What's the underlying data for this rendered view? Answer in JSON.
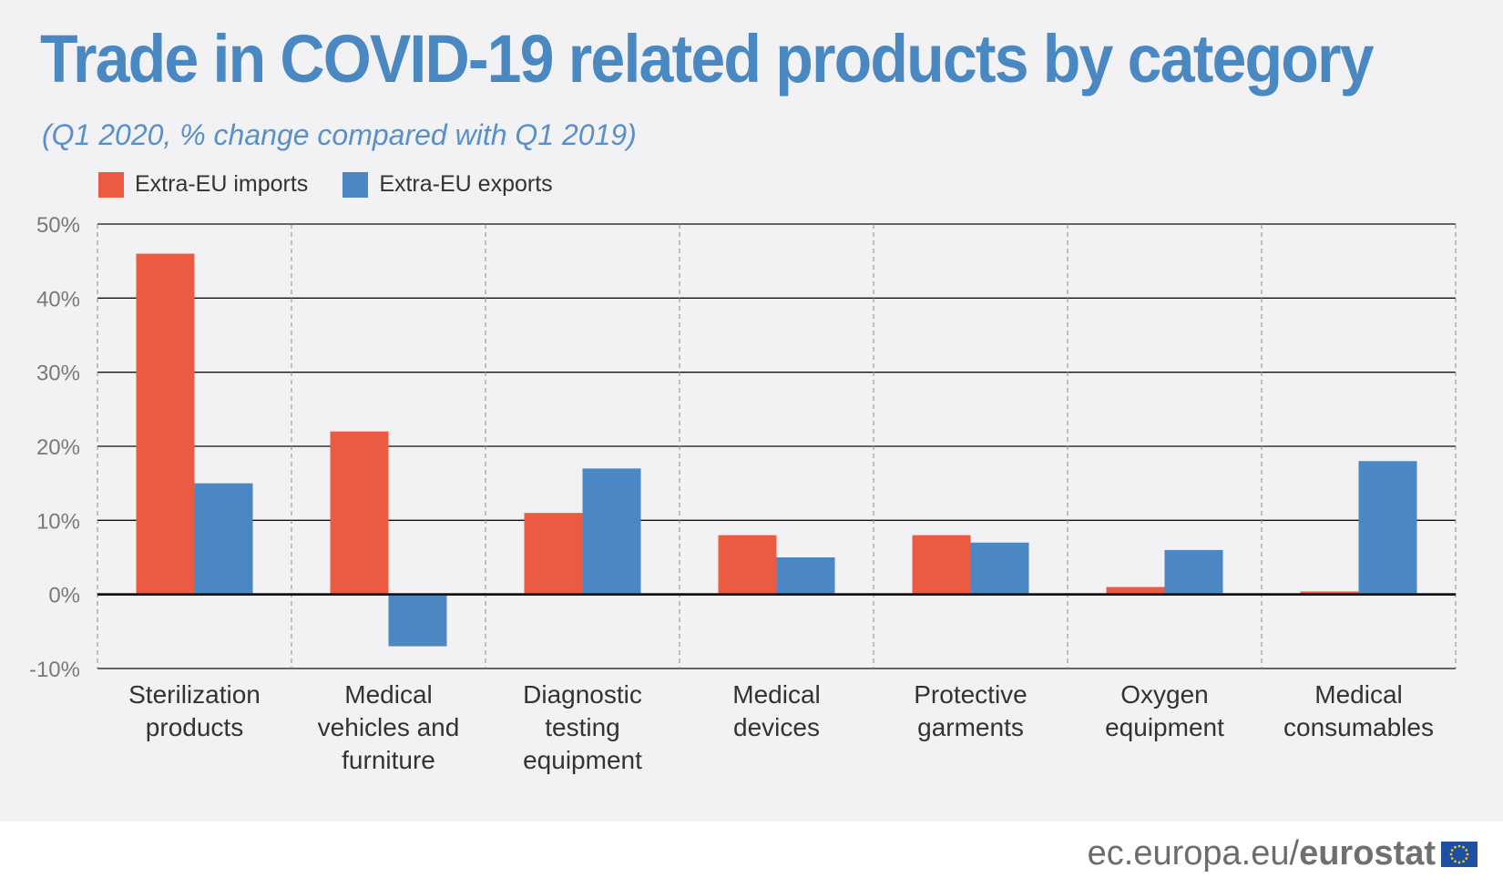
{
  "chart_data": {
    "type": "bar",
    "title": "Trade in COVID-19 related products by category",
    "subtitle": "(Q1 2020, % change compared with Q1 2019)",
    "categories": [
      [
        "Sterilization",
        "products"
      ],
      [
        "Medical",
        "vehicles and",
        "furniture"
      ],
      [
        "Diagnostic",
        "testing",
        "equipment"
      ],
      [
        "Medical",
        "devices"
      ],
      [
        "Protective",
        "garments"
      ],
      [
        "Oxygen",
        "equipment"
      ],
      [
        "Medical",
        "consumables"
      ]
    ],
    "series": [
      {
        "name": "Extra-EU imports",
        "color": "#ec5a42",
        "values": [
          46,
          22,
          11,
          8,
          8,
          1,
          0.4
        ]
      },
      {
        "name": "Extra-EU exports",
        "color": "#4b88c3",
        "values": [
          15,
          -7,
          17,
          5,
          7,
          6,
          18
        ]
      }
    ],
    "ylim": [
      -10,
      50
    ],
    "yticks": [
      50,
      40,
      30,
      20,
      10,
      0,
      -10
    ],
    "ytick_labels": [
      "50%",
      "40%",
      "30%",
      "20%",
      "10%",
      "0%",
      "-10%"
    ],
    "grid": true,
    "legend_position": "top-left"
  },
  "footer": {
    "site": "ec.europa.eu/",
    "brand": "eurostat"
  }
}
